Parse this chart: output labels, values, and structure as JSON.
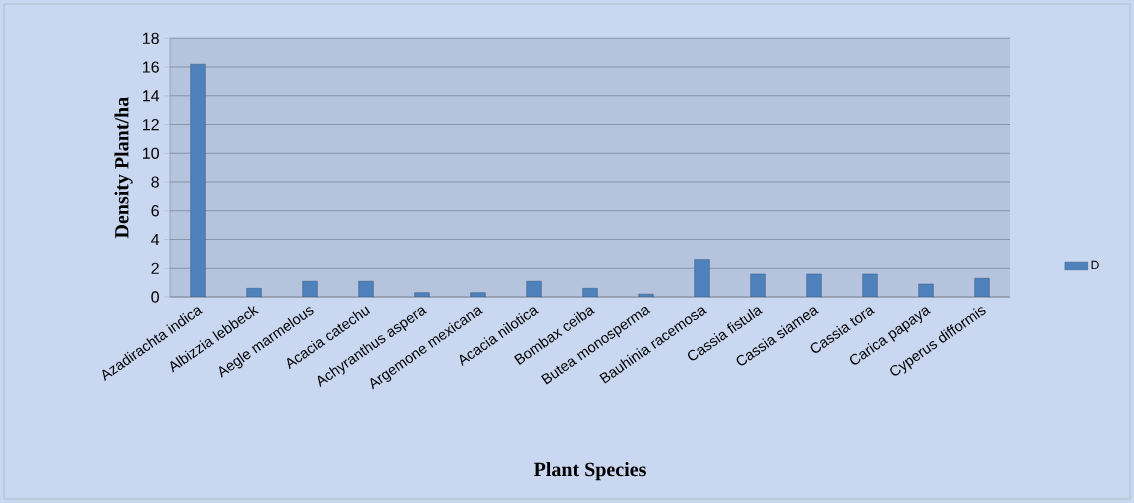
{
  "chart_data": {
    "type": "bar",
    "xlabel": "Plant Species",
    "ylabel": "Density Plant/ha",
    "categories": [
      "Azadirachta indica",
      "Albizzia lebbeck",
      "Aegle marmelous",
      "Acacia catechu",
      "Achyranthus aspera",
      "Argemone mexicana",
      "Acacia nilotica",
      "Bombax ceiba",
      "Butea monosperma",
      "Bauhinia racemosa",
      "Cassia fistula",
      "Cassia siamea",
      "Cassia tora",
      "Carica papaya",
      "Cyperus difformis"
    ],
    "series": [
      {
        "name": "D",
        "color": "#4f81bd",
        "values": [
          16.2,
          0.6,
          1.1,
          1.1,
          0.3,
          0.3,
          1.1,
          0.6,
          0.2,
          2.6,
          1.6,
          1.6,
          1.6,
          0.9,
          1.3
        ]
      }
    ],
    "ylim": [
      0,
      18
    ],
    "yticks": [
      0,
      2,
      4,
      6,
      8,
      10,
      12,
      14,
      16,
      18
    ],
    "grid": "y",
    "legend": "right"
  }
}
